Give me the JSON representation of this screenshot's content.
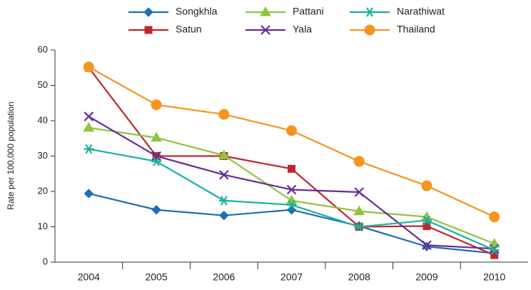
{
  "chart_data": {
    "type": "line",
    "y_label": "Rate per 100,000 population",
    "categories": [
      "2004",
      "2005",
      "2006",
      "2007",
      "2008",
      "2009",
      "2010"
    ],
    "series": [
      {
        "name": "Songkhla",
        "color": "#1f6eb5",
        "marker": "diamond",
        "values": [
          19.4,
          14.8,
          13.2,
          14.8,
          10.2,
          4.4,
          2.5
        ]
      },
      {
        "name": "Satun",
        "color": "#c0272d",
        "marker": "square",
        "values": [
          55,
          30,
          30,
          26.4,
          10,
          10.2,
          2
        ]
      },
      {
        "name": "Pattani",
        "color": "#8dc63f",
        "marker": "triangle",
        "values": [
          38,
          35.2,
          30.2,
          17.4,
          14.4,
          12.8,
          5.2
        ]
      },
      {
        "name": "Yala",
        "color": "#6a2c91",
        "marker": "x",
        "values": [
          41.2,
          30,
          24.7,
          20.5,
          19.8,
          4.8,
          3.8
        ]
      },
      {
        "name": "Narathiwat",
        "color": "#1ab1a0",
        "marker": "asterisk",
        "values": [
          32,
          28.5,
          17.4,
          16.2,
          10,
          11.8,
          3.4
        ]
      },
      {
        "name": "Thailand",
        "color": "#f7941d",
        "marker": "circle",
        "values": [
          55.2,
          44.5,
          41.8,
          37.2,
          28.5,
          21.6,
          12.8
        ]
      }
    ],
    "ylim": [
      0,
      60
    ],
    "yticks": [
      0,
      10,
      20,
      30,
      40,
      50,
      60
    ],
    "grid": false
  }
}
